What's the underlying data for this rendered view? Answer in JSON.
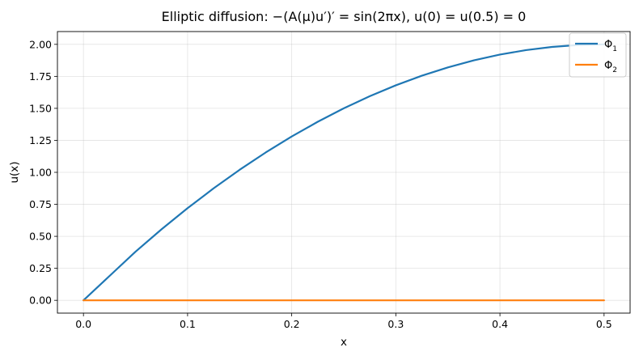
{
  "chart_data": {
    "type": "line",
    "title": "Elliptic diffusion: −(A(μ)u′)′ = sin(2πx),  u(0) = u(0.5) = 0",
    "xlabel": "x",
    "ylabel": "u(x)",
    "xlim": [
      -0.025,
      0.525
    ],
    "ylim": [
      -0.1,
      2.1
    ],
    "xticks": [
      0.0,
      0.1,
      0.2,
      0.3,
      0.4,
      0.5
    ],
    "xtick_labels": [
      "0.0",
      "0.1",
      "0.2",
      "0.3",
      "0.4",
      "0.5"
    ],
    "yticks": [
      0.0,
      0.25,
      0.5,
      0.75,
      1.0,
      1.25,
      1.5,
      1.75,
      2.0
    ],
    "ytick_labels": [
      "0.00",
      "0.25",
      "0.50",
      "0.75",
      "1.00",
      "1.25",
      "1.50",
      "1.75",
      "2.00"
    ],
    "grid": true,
    "legend_position": "top-right",
    "series": [
      {
        "name": "Φ1",
        "name_base": "Φ",
        "name_sub": "1",
        "color": "#1f77b4",
        "x": [
          0.0,
          0.025,
          0.05,
          0.075,
          0.1,
          0.125,
          0.15,
          0.175,
          0.2,
          0.225,
          0.25,
          0.275,
          0.3,
          0.325,
          0.35,
          0.375,
          0.4,
          0.425,
          0.45,
          0.475,
          0.5
        ],
        "y": [
          0.0,
          0.19,
          0.38,
          0.555,
          0.72,
          0.875,
          1.02,
          1.155,
          1.28,
          1.395,
          1.5,
          1.595,
          1.68,
          1.755,
          1.82,
          1.875,
          1.92,
          1.955,
          1.98,
          1.995,
          2.0
        ]
      },
      {
        "name": "Φ2",
        "name_base": "Φ",
        "name_sub": "2",
        "color": "#ff7f0e",
        "x": [
          0.0,
          0.5
        ],
        "y": [
          0.0,
          0.0
        ]
      }
    ]
  }
}
